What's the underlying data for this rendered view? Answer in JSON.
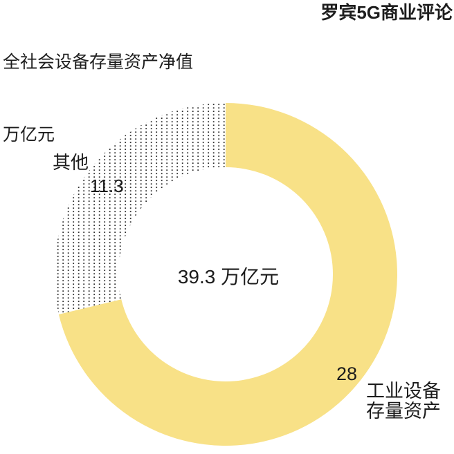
{
  "header": {
    "title_line1": "全社会设备存量资产净值",
    "title_line2": "万亿元",
    "brand": "罗宾5G商业评论"
  },
  "colors": {
    "accent_yellow": "#F8E187",
    "dot_pattern": "#2E2E2E",
    "text": "#1D1D1D",
    "background": "#FFFFFF"
  },
  "chart_data": {
    "type": "pie",
    "donut": true,
    "title": "全社会设备存量资产净值",
    "unit": "万亿元",
    "total": 39.3,
    "center_label": "39.3 万亿元",
    "start_angle_deg": 0,
    "clockwise": true,
    "legend_position": "none",
    "slices": [
      {
        "name": "工业设备存量资产",
        "name_lines": [
          "工业设备",
          "存量资产"
        ],
        "value": 28,
        "fill": "#F8E187",
        "pattern": "solid"
      },
      {
        "name": "其他",
        "value": 11.3,
        "fill": "dot-pattern",
        "pattern": "dots",
        "dot_color": "#2E2E2E"
      }
    ]
  }
}
